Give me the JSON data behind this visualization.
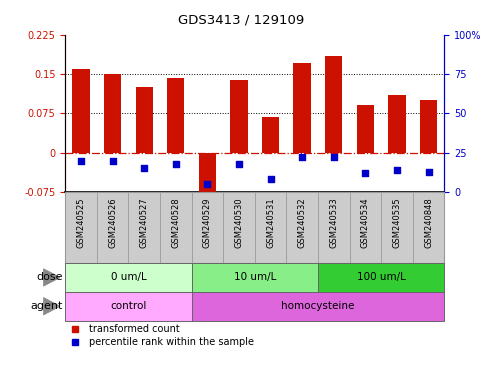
{
  "title": "GDS3413 / 129109",
  "samples": [
    "GSM240525",
    "GSM240526",
    "GSM240527",
    "GSM240528",
    "GSM240529",
    "GSM240530",
    "GSM240531",
    "GSM240532",
    "GSM240533",
    "GSM240534",
    "GSM240535",
    "GSM240848"
  ],
  "transformed_count": [
    0.16,
    0.15,
    0.125,
    0.143,
    -0.08,
    0.138,
    0.068,
    0.17,
    0.185,
    0.09,
    0.11,
    0.1
  ],
  "percentile_rank": [
    20,
    20,
    15,
    18,
    5,
    18,
    8,
    22,
    22,
    12,
    14,
    13
  ],
  "left_ylim": [
    -0.075,
    0.225
  ],
  "right_ylim": [
    0,
    100
  ],
  "left_yticks": [
    -0.075,
    0,
    0.075,
    0.15,
    0.225
  ],
  "right_yticks": [
    0,
    25,
    50,
    75,
    100
  ],
  "right_yticklabels": [
    "0",
    "25",
    "50",
    "75",
    "100%"
  ],
  "hline_y": 0,
  "dotted_hlines": [
    0.075,
    0.15
  ],
  "bar_color": "#cc1100",
  "dot_color": "#0000cc",
  "dose_groups": [
    {
      "label": "0 um/L",
      "start": 0,
      "end": 4,
      "color": "#ccffcc"
    },
    {
      "label": "10 um/L",
      "start": 4,
      "end": 8,
      "color": "#88ee88"
    },
    {
      "label": "100 um/L",
      "start": 8,
      "end": 12,
      "color": "#33cc33"
    }
  ],
  "agent_groups": [
    {
      "label": "control",
      "start": 0,
      "end": 4,
      "color": "#ffaaff"
    },
    {
      "label": "homocysteine",
      "start": 4,
      "end": 12,
      "color": "#dd66dd"
    }
  ],
  "dose_label": "dose",
  "agent_label": "agent",
  "legend_bar_label": "transformed count",
  "legend_dot_label": "percentile rank within the sample",
  "bar_width": 0.55,
  "label_bg_color": "#cccccc",
  "label_border_color": "#999999"
}
